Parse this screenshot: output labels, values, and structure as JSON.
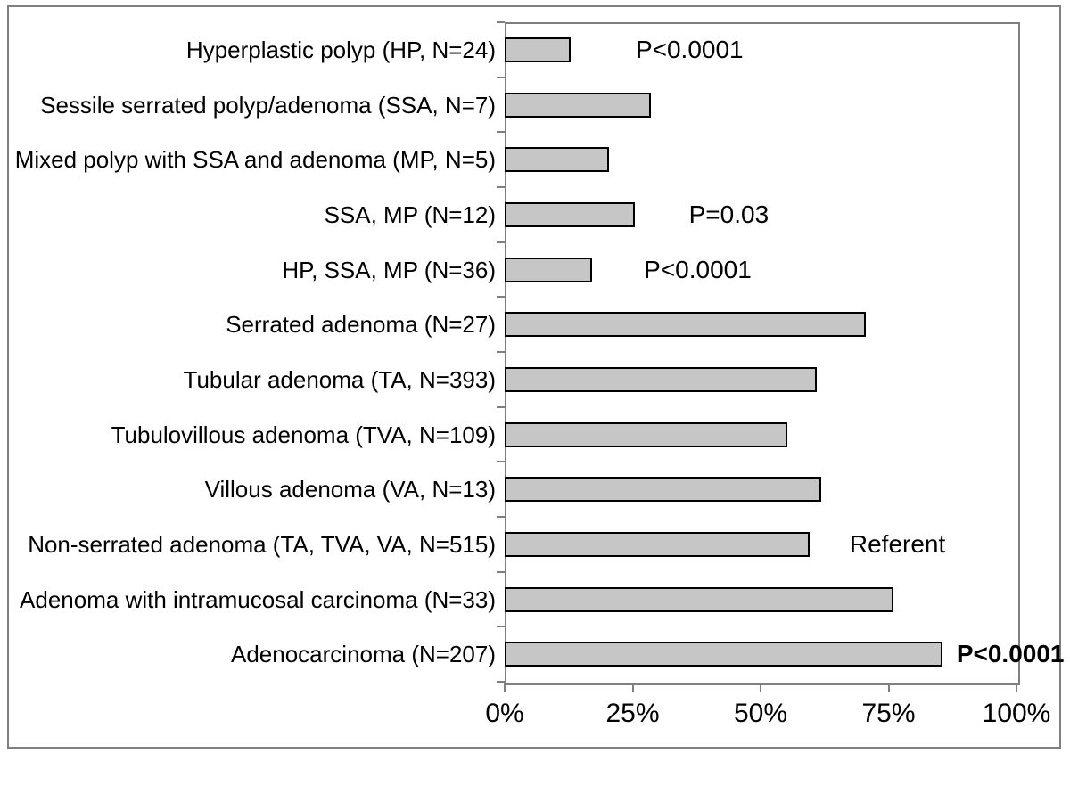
{
  "figure": {
    "background_color": "#ffffff",
    "border_color": "#7f7f7f"
  },
  "chart_data": {
    "type": "bar",
    "orientation": "horizontal",
    "title": "",
    "xlabel": "",
    "ylabel": "",
    "xlim": [
      0,
      100
    ],
    "grid": false,
    "legend": false,
    "bar_fill_color": "#c6c6c6",
    "bar_border_color": "#000000",
    "x_tick_labels": [
      "0%",
      "25%",
      "50%",
      "75%",
      "100%"
    ],
    "x_tick_values": [
      0,
      25,
      50,
      75,
      100
    ],
    "categories": [
      "Hyperplastic polyp (HP, N=24)",
      "Sessile serrated polyp/adenoma (SSA, N=7)",
      "Mixed polyp with SSA and adenoma (MP, N=5)",
      "SSA, MP (N=12)",
      "HP, SSA, MP (N=36)",
      "Serrated adenoma (N=27)",
      "Tubular adenoma (TA, N=393)",
      "Tubulovillous adenoma (TVA, N=109)",
      "Villous adenoma (VA, N=13)",
      "Non-serrated adenoma (TA, TVA, VA, N=515)",
      "Adenoma with intramucosal carcinoma (N=33)",
      "Adenocarcinoma (N=207)"
    ],
    "values": [
      12.9,
      28.5,
      20.3,
      25.4,
      17.1,
      70.5,
      61.0,
      55.2,
      61.8,
      59.6,
      76.0,
      85.5
    ],
    "annotations": [
      {
        "label": "P<0.0001",
        "row": 0,
        "x_pct": 25.6,
        "bold": false
      },
      {
        "label": "P=0.03",
        "row": 3,
        "x_pct": 36.0,
        "bold": false
      },
      {
        "label": "P<0.0001",
        "row": 4,
        "x_pct": 27.2,
        "bold": false
      },
      {
        "label": "Referent",
        "row": 9,
        "x_pct": 67.4,
        "bold": false
      },
      {
        "label": "P<0.0001",
        "row": 11,
        "x_pct": 88.3,
        "bold": true
      }
    ]
  }
}
